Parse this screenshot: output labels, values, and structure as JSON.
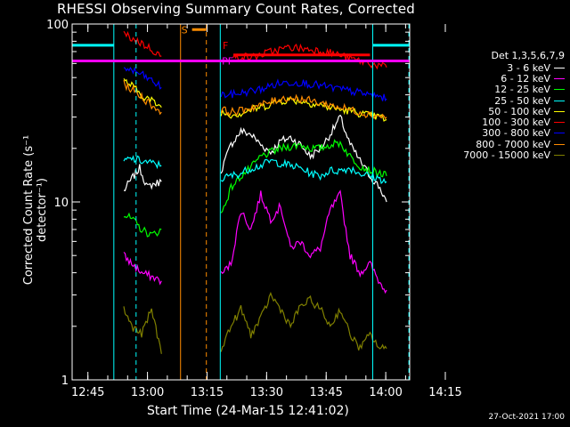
{
  "title": "RHESSI Observing Summary Count Rates, Corrected",
  "xlabel": "Start Time (24-Mar-15 12:41:02)",
  "ylabel": "Corrected Count Rate (s⁻¹ detector⁻¹)",
  "stamp": "27-Oct-2021 17:00",
  "legend": {
    "header": "Det 1,3,5,6,7,9",
    "items": [
      {
        "label": "3 - 6 keV",
        "color": "#ffffff"
      },
      {
        "label": "6 - 12 keV",
        "color": "#ff00ff"
      },
      {
        "label": "12 - 25 keV",
        "color": "#00ff00"
      },
      {
        "label": "25 - 50 keV",
        "color": "#00ffff"
      },
      {
        "label": "50 - 100 keV",
        "color": "#ffff00"
      },
      {
        "label": "100 - 300 keV",
        "color": "#ff0000"
      },
      {
        "label": "300 - 800 keV",
        "color": "#0000ff"
      },
      {
        "label": "800 - 7000 keV",
        "color": "#ff8c00"
      },
      {
        "label": "7000 - 15000 keV",
        "color": "#808000"
      }
    ]
  },
  "chart_data": {
    "type": "line",
    "title": "RHESSI Observing Summary Count Rates, Corrected",
    "xlabel": "Start Time (24-Mar-15 12:41:02)",
    "ylabel": "Corrected Count Rate (s⁻¹ detector⁻¹)",
    "ylog": true,
    "ylim": [
      1,
      100
    ],
    "xlim_min": [
      0,
      85
    ],
    "x_ticks": [
      {
        "label": "12:45",
        "min": 3.97
      },
      {
        "label": "13:00",
        "min": 18.97
      },
      {
        "label": "13:15",
        "min": 33.97
      },
      {
        "label": "13:30",
        "min": 48.97
      },
      {
        "label": "13:45",
        "min": 63.97
      },
      {
        "label": "14:00",
        "min": 78.97
      },
      {
        "label": "14:15",
        "min": 93.97
      }
    ],
    "y_ticks": [
      {
        "label": "1",
        "value": 1
      },
      {
        "label": "10",
        "value": 10
      },
      {
        "label": "100",
        "value": 100
      }
    ],
    "annotations": [
      {
        "text": "S",
        "color": "#ff8c00",
        "x_min": 30.2,
        "y": 93
      },
      {
        "text": "F",
        "color": "#ff0000",
        "x_min": 40.6,
        "y": 76
      },
      {
        "text": "PF",
        "color": "#ff00ff",
        "x_min": 40.4,
        "y": 62
      }
    ],
    "series": [
      {
        "name": "3 - 6 keV",
        "color": "#ffffff",
        "segments": [
          {
            "x": [
              13.0,
              15.0,
              17.0,
              19.0,
              20.0,
              22.5
            ],
            "y": [
              11.5,
              13.5,
              15.5,
              12.0,
              12.5,
              13.0
            ]
          },
          {
            "x": [
              37.5,
              40.0,
              42.5,
              45.0,
              47.5,
              50.0,
              52.5,
              55.0,
              57.5,
              60.0,
              62.5,
              65.0,
              67.5,
              70.0,
              72.5,
              75.0,
              77.5,
              79.2
            ],
            "y": [
              15.0,
              21.0,
              25.0,
              24.0,
              21.0,
              19.0,
              22.0,
              23.0,
              21.0,
              18.0,
              20.0,
              24.0,
              30.0,
              21.0,
              17.0,
              14.0,
              12.0,
              10.0
            ]
          }
        ]
      },
      {
        "name": "6 - 12 keV",
        "color": "#ff00ff",
        "segments": [
          {
            "x": [
              13.0,
              15.0,
              17.5,
              20.0,
              22.5
            ],
            "y": [
              5.0,
              4.5,
              4.0,
              3.8,
              3.6
            ]
          },
          {
            "x": [
              37.5,
              40.0,
              42.5,
              45.0,
              47.5,
              50.0,
              52.5,
              55.0,
              57.5,
              60.0,
              62.5,
              65.0,
              67.5,
              70.0,
              72.5,
              75.0,
              77.5,
              79.2
            ],
            "y": [
              3.9,
              4.5,
              9.0,
              7.0,
              11.0,
              8.0,
              9.5,
              5.5,
              6.0,
              5.0,
              5.5,
              9.0,
              11.0,
              5.0,
              4.0,
              4.5,
              3.5,
              3.2
            ]
          }
        ]
      },
      {
        "name": "12 - 25 keV",
        "color": "#00ff00",
        "segments": [
          {
            "x": [
              13.0,
              15.0,
              17.5,
              20.0,
              22.5
            ],
            "y": [
              8.5,
              8.0,
              7.0,
              6.5,
              7.0
            ]
          },
          {
            "x": [
              37.5,
              40.0,
              42.5,
              45.0,
              47.5,
              50.0,
              52.5,
              55.0,
              57.5,
              60.0,
              62.5,
              65.0,
              67.5,
              70.0,
              72.5,
              75.0,
              77.5,
              79.2
            ],
            "y": [
              8.5,
              12.0,
              14.0,
              15.5,
              18.0,
              19.0,
              20.0,
              20.5,
              21.0,
              20.0,
              20.0,
              21.0,
              21.5,
              18.0,
              16.0,
              15.0,
              14.5,
              14.0
            ]
          }
        ]
      },
      {
        "name": "25 - 50 keV",
        "color": "#00ffff",
        "segments": [
          {
            "x": [
              13.0,
              15.0,
              17.5,
              20.0,
              22.5
            ],
            "y": [
              17.0,
              17.5,
              17.0,
              16.5,
              16.0
            ]
          },
          {
            "x": [
              37.5,
              40.0,
              42.5,
              45.0,
              47.5,
              50.0,
              52.5,
              55.0,
              57.5,
              60.0,
              62.5,
              65.0,
              67.5,
              70.0,
              72.5,
              75.0,
              77.5,
              79.2
            ],
            "y": [
              13.5,
              14.0,
              14.5,
              15.5,
              16.0,
              17.0,
              16.5,
              16.0,
              15.5,
              14.5,
              14.0,
              15.0,
              15.0,
              15.5,
              14.5,
              14.0,
              13.5,
              13.0
            ]
          }
        ]
      },
      {
        "name": "50 - 100 keV",
        "color": "#ffff00",
        "segments": [
          {
            "x": [
              13.0,
              15.0,
              17.5,
              20.0,
              22.5
            ],
            "y": [
              48.0,
              45.0,
              40.0,
              37.0,
              34.0
            ]
          },
          {
            "x": [
              37.5,
              40.0,
              42.5,
              45.0,
              47.5,
              50.0,
              52.5,
              55.0,
              57.5,
              60.0,
              62.5,
              65.0,
              67.5,
              70.0,
              72.5,
              75.0,
              77.5,
              79.2
            ],
            "y": [
              32.0,
              31.0,
              31.5,
              33.0,
              34.0,
              35.5,
              37.0,
              37.5,
              37.0,
              36.0,
              35.0,
              34.0,
              33.0,
              32.5,
              31.5,
              30.5,
              30.0,
              29.0
            ]
          }
        ]
      },
      {
        "name": "100 - 300 keV",
        "color": "#ff0000",
        "segments": [
          {
            "x": [
              13.0,
              15.0,
              17.5,
              20.0,
              22.5
            ],
            "y": [
              88.0,
              83.0,
              78.0,
              72.0,
              66.0
            ]
          },
          {
            "x": [
              40.5,
              42.5,
              45.0,
              47.5,
              50.0,
              52.5,
              55.0,
              57.5,
              60.0,
              62.5,
              65.0,
              67.5,
              70.0,
              72.5,
              75.0,
              77.5,
              79.2
            ],
            "y": [
              64.0,
              66.0,
              65.0,
              67.0,
              70.0,
              72.0,
              74.0,
              73.0,
              72.0,
              71.0,
              69.0,
              67.0,
              64.0,
              62.0,
              60.0,
              58.0,
              57.0
            ]
          }
        ]
      },
      {
        "name": "300 - 800 keV",
        "color": "#0000ff",
        "segments": [
          {
            "x": [
              13.0,
              15.0,
              17.5,
              20.0,
              22.5
            ],
            "y": [
              57.0,
              55.0,
              52.0,
              48.0,
              44.0
            ]
          },
          {
            "x": [
              37.5,
              40.0,
              42.5,
              45.0,
              47.5,
              50.0,
              52.5,
              55.0,
              57.5,
              60.0,
              62.5,
              65.0,
              67.5,
              70.0,
              72.5,
              75.0,
              77.5,
              79.2
            ],
            "y": [
              40.0,
              40.0,
              41.0,
              42.0,
              43.0,
              45.0,
              46.5,
              47.0,
              47.0,
              46.0,
              45.0,
              44.0,
              43.0,
              42.0,
              41.0,
              40.0,
              39.0,
              38.0
            ]
          }
        ]
      },
      {
        "name": "800 - 7000 keV",
        "color": "#ff8c00",
        "segments": [
          {
            "x": [
              13.0,
              15.0,
              17.5,
              20.0,
              22.5
            ],
            "y": [
              46.0,
              43.0,
              39.0,
              35.0,
              32.0
            ]
          },
          {
            "x": [
              37.5,
              40.0,
              42.5,
              45.0,
              47.5,
              50.0,
              52.5,
              55.0,
              57.5,
              60.0,
              62.5,
              65.0,
              67.5,
              70.0,
              72.5,
              75.0,
              77.5,
              79.2
            ],
            "y": [
              33.0,
              32.0,
              32.5,
              34.0,
              35.0,
              36.5,
              38.0,
              38.5,
              38.0,
              37.0,
              36.0,
              35.0,
              34.0,
              33.0,
              32.0,
              31.0,
              30.5,
              30.0
            ]
          }
        ]
      },
      {
        "name": "7000 - 15000 keV",
        "color": "#808000",
        "segments": [
          {
            "x": [
              13.0,
              15.0,
              17.5,
              20.0,
              22.5
            ],
            "y": [
              2.5,
              2.0,
              1.8,
              2.5,
              1.4
            ]
          },
          {
            "x": [
              37.5,
              40.0,
              42.5,
              45.0,
              47.5,
              50.0,
              52.5,
              55.0,
              57.5,
              60.0,
              62.5,
              65.0,
              67.5,
              70.0,
              72.5,
              75.0,
              77.5,
              79.2
            ],
            "y": [
              1.5,
              2.0,
              2.5,
              1.8,
              2.2,
              3.0,
              2.5,
              2.0,
              2.6,
              2.8,
              2.5,
              2.0,
              2.5,
              1.8,
              1.5,
              1.8,
              1.5,
              1.5
            ]
          }
        ]
      }
    ],
    "level_lines": [
      {
        "color": "#ff00ff",
        "y": 62,
        "x": [
          0,
          85
        ]
      },
      {
        "color": "#00ffff",
        "y": 76,
        "x": [
          0,
          10.5
        ]
      },
      {
        "color": "#00ffff",
        "y": 76,
        "x": [
          75.7,
          85
        ]
      },
      {
        "color": "#ff8c00",
        "y": 93,
        "x": [
          30.2,
          33.8
        ]
      },
      {
        "color": "#ff0000",
        "y": 67,
        "x": [
          40.6,
          75.0
        ]
      }
    ],
    "vertical_markers": [
      {
        "color": "#00ffff",
        "style": "solid",
        "x": 10.5
      },
      {
        "color": "#00ffff",
        "style": "dashed",
        "x": 16.1
      },
      {
        "color": "#ff8c00",
        "style": "solid",
        "x": 27.3
      },
      {
        "color": "#ff8c00",
        "style": "dashed",
        "x": 33.8
      },
      {
        "color": "#00ffff",
        "style": "solid",
        "x": 37.3
      },
      {
        "color": "#00ffff",
        "style": "solid",
        "x": 75.7
      },
      {
        "color": "#00ffff",
        "style": "dashed",
        "x": 84.8
      }
    ]
  }
}
